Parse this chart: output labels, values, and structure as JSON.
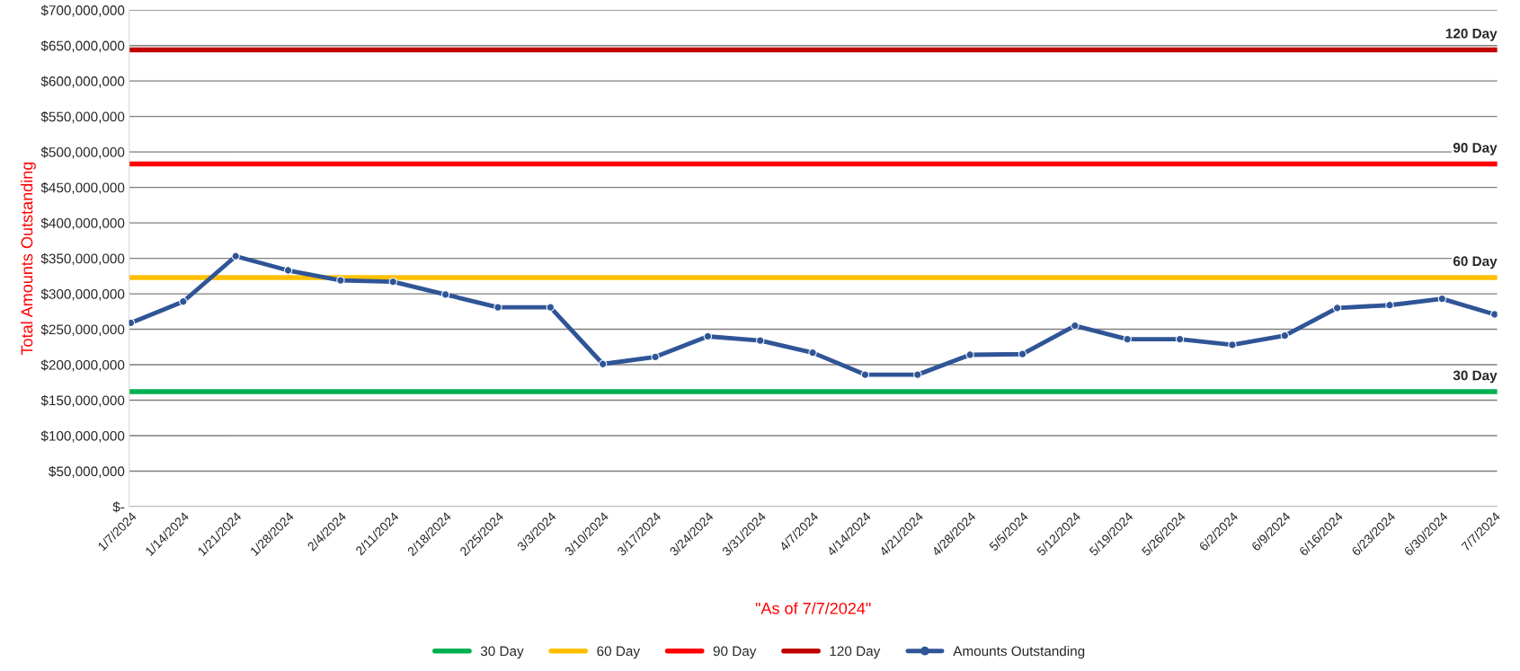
{
  "chart_data": {
    "type": "line",
    "ylabel": "Total Amounts Outstanding",
    "xlabel": "\"As of 7/7/2024\"",
    "categories": [
      "1/7/2024",
      "1/14/2024",
      "1/21/2024",
      "1/28/2024",
      "2/4/2024",
      "2/11/2024",
      "2/18/2024",
      "2/25/2024",
      "3/3/2024",
      "3/10/2024",
      "3/17/2024",
      "3/24/2024",
      "3/31/2024",
      "4/7/2024",
      "4/14/2024",
      "4/21/2024",
      "4/28/2024",
      "5/5/2024",
      "5/12/2024",
      "5/19/2024",
      "5/26/2024",
      "6/2/2024",
      "6/9/2024",
      "6/16/2024",
      "6/23/2024",
      "6/30/2024",
      "7/7/2024"
    ],
    "series": [
      {
        "name": "Amounts Outstanding",
        "color": "#2f5597",
        "values": [
          259000000,
          289000000,
          353000000,
          333000000,
          319000000,
          317000000,
          299000000,
          281000000,
          281000000,
          201000000,
          211000000,
          240000000,
          234000000,
          217000000,
          186000000,
          186000000,
          214000000,
          215000000,
          255000000,
          236000000,
          236000000,
          228000000,
          241000000,
          280000000,
          284000000,
          293000000,
          271000000
        ]
      }
    ],
    "ref_lines": [
      {
        "axis": "y",
        "value": 162000000,
        "label": "30 Day",
        "color": "#00b050"
      },
      {
        "axis": "y",
        "value": 323000000,
        "label": "60 Day",
        "color": "#ffc000"
      },
      {
        "axis": "y",
        "value": 483000000,
        "label": "90 Day",
        "color": "#ff0000"
      },
      {
        "axis": "y",
        "value": 644000000,
        "label": "120 Day",
        "color": "#c00000"
      }
    ],
    "ylim": [
      0,
      700000000
    ],
    "yticks": [
      {
        "value": 0,
        "label": "$-"
      },
      {
        "value": 50000000,
        "label": "$50,000,000"
      },
      {
        "value": 100000000,
        "label": "$100,000,000"
      },
      {
        "value": 150000000,
        "label": "$150,000,000"
      },
      {
        "value": 200000000,
        "label": "$200,000,000"
      },
      {
        "value": 250000000,
        "label": "$250,000,000"
      },
      {
        "value": 300000000,
        "label": "$300,000,000"
      },
      {
        "value": 350000000,
        "label": "$350,000,000"
      },
      {
        "value": 400000000,
        "label": "$400,000,000"
      },
      {
        "value": 450000000,
        "label": "$450,000,000"
      },
      {
        "value": 500000000,
        "label": "$500,000,000"
      },
      {
        "value": 550000000,
        "label": "$550,000,000"
      },
      {
        "value": 600000000,
        "label": "$600,000,000"
      },
      {
        "value": 650000000,
        "label": "$650,000,000"
      },
      {
        "value": 700000000,
        "label": "$700,000,000"
      }
    ],
    "grid": "y",
    "legend": "bottom",
    "marker": "circle",
    "line_style": "solid"
  }
}
